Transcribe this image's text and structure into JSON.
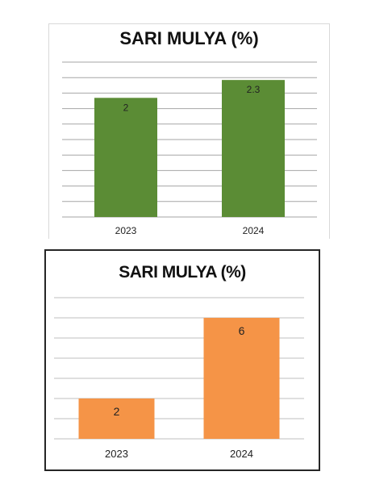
{
  "chart_data": [
    {
      "type": "bar",
      "title": "SARI MULYA (%)",
      "categories": [
        "2023",
        "2024"
      ],
      "values": [
        2,
        2.3
      ],
      "data_labels": [
        "2",
        "2.3"
      ],
      "xlabel": "",
      "ylabel": "",
      "ylim": [
        0,
        2.6
      ],
      "grid": true,
      "bar_color": "#5b8c35",
      "gridline_color": "#a6a6a6"
    },
    {
      "type": "bar",
      "title": "SARI MULYA (%)",
      "categories": [
        "2023",
        "2024"
      ],
      "values": [
        2,
        6
      ],
      "data_labels": [
        "2",
        "6"
      ],
      "xlabel": "",
      "ylabel": "",
      "ylim": [
        0,
        7
      ],
      "grid": true,
      "bar_color": "#f59447",
      "gridline_color": "#bfbfbf"
    }
  ]
}
